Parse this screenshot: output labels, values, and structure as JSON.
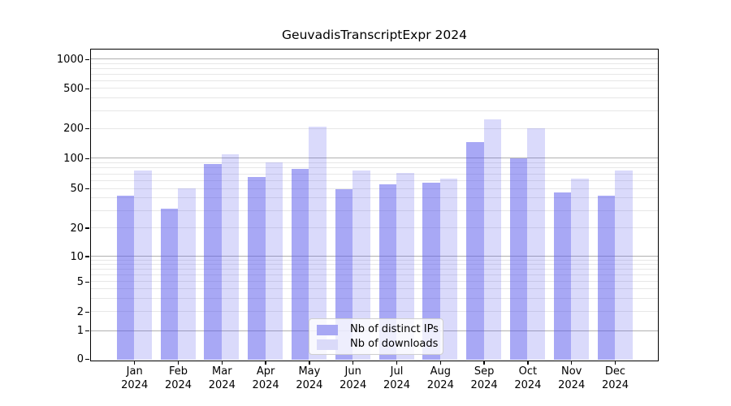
{
  "title": "GeuvadisTranscriptExpr 2024",
  "chart_data": {
    "type": "bar",
    "title": "GeuvadisTranscriptExpr 2024",
    "categories": [
      "Jan",
      "Feb",
      "Mar",
      "Apr",
      "May",
      "Jun",
      "Jul",
      "Aug",
      "Sep",
      "Oct",
      "Nov",
      "Dec"
    ],
    "category_sublabel": "2024",
    "series": [
      {
        "name": "Nb of distinct IPs",
        "color": "#a8a8f4",
        "values": [
          42,
          31,
          88,
          65,
          78,
          49,
          55,
          57,
          145,
          100,
          46,
          42
        ]
      },
      {
        "name": "Nb of downloads",
        "color": "#dadaf9",
        "values": [
          75,
          50,
          110,
          90,
          210,
          75,
          71,
          63,
          245,
          200,
          63,
          76
        ]
      }
    ],
    "xlabel": "",
    "ylabel": "",
    "yscale": "symlog-like",
    "y_ticks": [
      0,
      1,
      2,
      5,
      10,
      20,
      50,
      100,
      200,
      500,
      1000
    ],
    "y_major_gridlines": [
      1,
      10,
      100,
      1000
    ],
    "ylim": [
      0,
      1264
    ],
    "grid": "major+minor",
    "legend_position": "inside-bottom-center",
    "colors": {
      "major_grid": "#b0b0b0",
      "minor_grid": "#e7e7e7",
      "axis": "#000000"
    }
  }
}
